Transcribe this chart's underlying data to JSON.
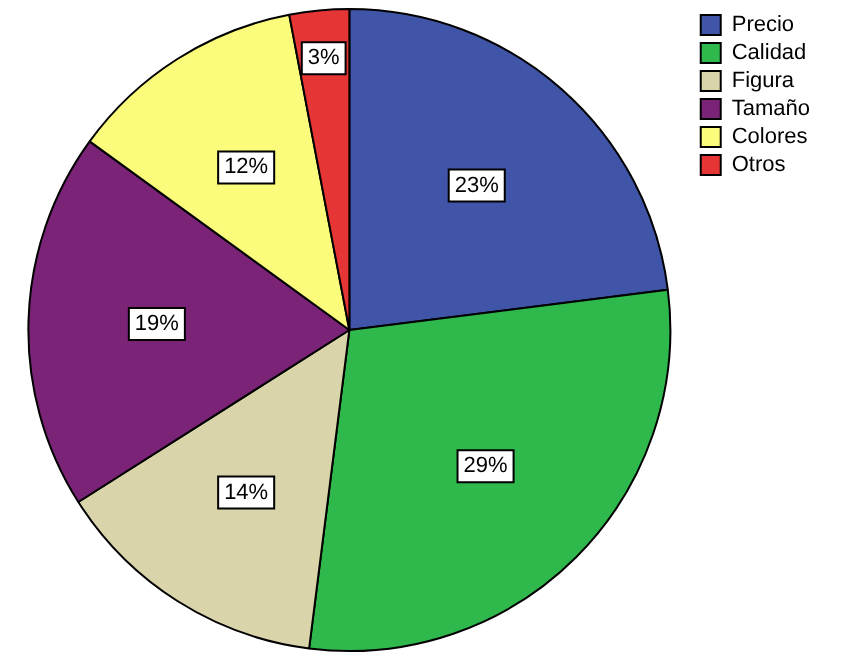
{
  "chart_data": {
    "type": "pie",
    "categories": [
      "Precio",
      "Calidad",
      "Figura",
      "Tamaño",
      "Colores",
      "Otros"
    ],
    "values": [
      23,
      29,
      14,
      19,
      12,
      3
    ],
    "colors": [
      "#4055a8",
      "#2fb84c",
      "#d9d4a9",
      "#7b2377",
      "#fbfb7c",
      "#e53535"
    ],
    "value_labels": [
      "23%",
      "29%",
      "14%",
      "19%",
      "12%",
      "3%"
    ],
    "legend": "top right"
  }
}
